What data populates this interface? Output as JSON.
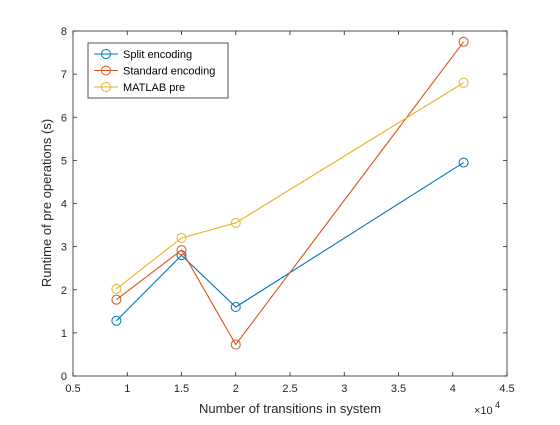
{
  "chart_data": {
    "type": "line",
    "title": "",
    "xlabel": "Number of transitions in system",
    "ylabel": "Runtime of pre operations (s)",
    "x_exponent_label": "×10",
    "x_exponent_power": "4",
    "xlim": [
      5000,
      45000
    ],
    "ylim": [
      0,
      8
    ],
    "x_ticks": [
      5000,
      10000,
      15000,
      20000,
      25000,
      30000,
      35000,
      40000,
      45000
    ],
    "x_tick_labels": [
      "0.5",
      "1",
      "1.5",
      "2",
      "2.5",
      "3",
      "3.5",
      "4",
      "4.5"
    ],
    "y_ticks": [
      0,
      1,
      2,
      3,
      4,
      5,
      6,
      7,
      8
    ],
    "y_tick_labels": [
      "0",
      "1",
      "2",
      "3",
      "4",
      "5",
      "6",
      "7",
      "8"
    ],
    "grid": false,
    "legend_position": "top-left",
    "x": [
      9000,
      15000,
      20000,
      41000
    ],
    "series": [
      {
        "name": "Split encoding",
        "color": "#0072BD",
        "values": [
          1.28,
          2.8,
          1.6,
          4.95
        ]
      },
      {
        "name": "Standard encoding",
        "color": "#D95319",
        "values": [
          1.77,
          2.92,
          0.73,
          7.75
        ]
      },
      {
        "name": "MATLAB pre",
        "color": "#EDB120",
        "values": [
          2.02,
          3.2,
          3.55,
          6.8
        ]
      }
    ]
  }
}
